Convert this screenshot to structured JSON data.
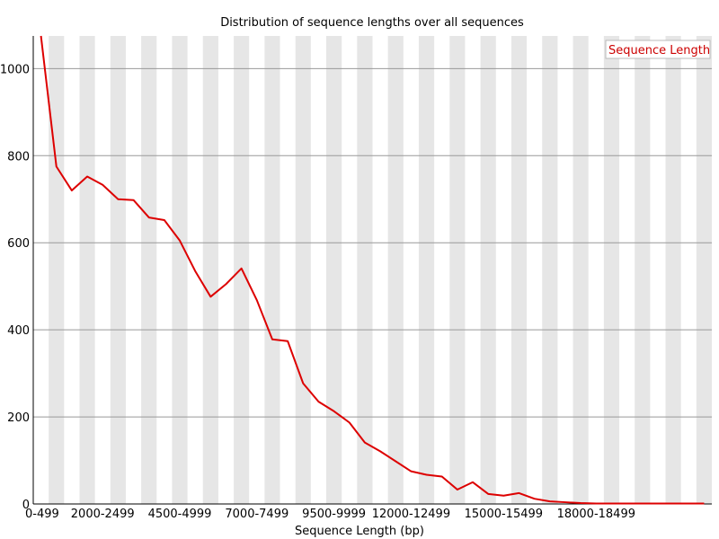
{
  "chart_data": {
    "type": "line",
    "title": "Distribution of sequence lengths over all sequences",
    "xlabel": "Sequence Length (bp)",
    "ylabel": "",
    "ylim": [
      0,
      1075
    ],
    "yticks": [
      0,
      200,
      400,
      600,
      800,
      1000
    ],
    "grid": "horizontal lines with alternating vertical bands",
    "legend": {
      "position": "top-right",
      "entries": [
        "Sequence Length"
      ]
    },
    "xtick_labels": [
      "0-499",
      "2000-2499",
      "4500-4999",
      "7000-7499",
      "9500-9999",
      "12000-12499",
      "15000-15499",
      "18000-18499"
    ],
    "categories": [
      "0-499",
      "500-999",
      "1000-1499",
      "1500-1999",
      "2000-2499",
      "2500-2999",
      "3000-3499",
      "3500-3999",
      "4000-4499",
      "4500-4999",
      "5000-5499",
      "5500-5999",
      "6000-6499",
      "6500-6999",
      "7000-7499",
      "7500-7999",
      "8000-8499",
      "8500-8999",
      "9000-9499",
      "9500-9999",
      "10000-10499",
      "10500-10999",
      "11000-11499",
      "11500-11999",
      "12000-12499",
      "12500-12999",
      "13000-13499",
      "13500-13999",
      "14000-14499",
      "14500-14999",
      "15000-15499",
      "15500-15999",
      "16000-16499",
      "16500-16999",
      "17000-17499",
      "17500-17999",
      "18000-18499",
      "18500-18999",
      "19000-19499",
      "19500-19999",
      "20000-20499",
      "20500-20999",
      "21000-21499",
      "21500-21999"
    ],
    "series": [
      {
        "name": "Sequence Length",
        "color": "#dd0000",
        "values": [
          1075,
          775,
          720,
          752,
          733,
          700,
          698,
          658,
          652,
          605,
          535,
          476,
          505,
          541,
          468,
          378,
          374,
          277,
          235,
          213,
          187,
          141,
          121,
          98,
          75,
          67,
          63,
          33,
          50,
          23,
          19,
          25,
          12,
          6,
          4,
          2,
          1,
          1,
          1,
          1,
          1,
          1,
          1,
          1
        ]
      }
    ]
  }
}
